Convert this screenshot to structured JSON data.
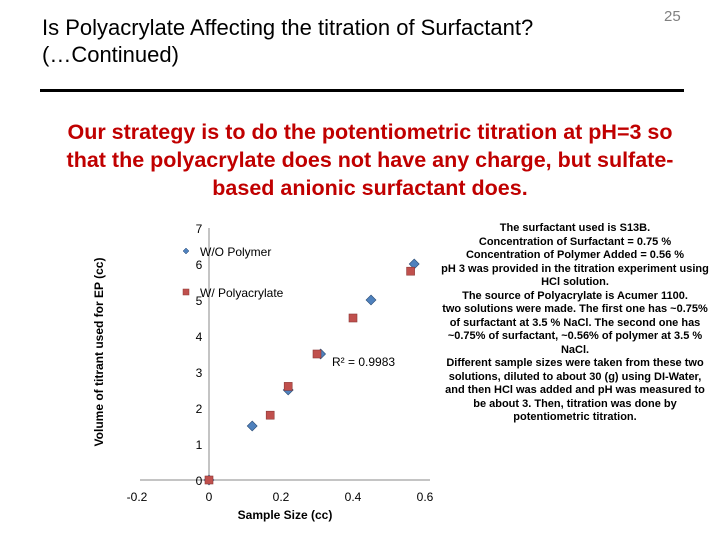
{
  "slide": {
    "title_line1": "Is Polyacrylate Affecting the titration of Surfactant?",
    "title_line2": "(…Continued)",
    "slide_number": "25",
    "strategy_text": "Our strategy is to do the potentiometric titration at pH=3 so that the polyacrylate does not have any charge, but sulfate-based anionic surfactant does.",
    "accent_color": "#c00000",
    "notes": [
      "The surfactant used is S13B.",
      "Concentration of Surfactant = 0.75 %",
      "Concentration of Polymer Added = 0.56 %",
      "pH 3 was provided in the titration experiment using HCl solution.",
      "The source of Polyacrylate is Acumer 1100.",
      "two solutions were made. The first one has ~0.75% of surfactant at 3.5 % NaCl. The second one has ~0.75% of surfactant, ~0.56% of polymer at 3.5 % NaCl.",
      "Different sample sizes were taken from these two solutions, diluted to about 30 (g) using DI-Water, and then HCl was added and pH was measured to be about 3. Then, titration was done by potentiometric titration."
    ]
  },
  "chart_data": {
    "type": "scatter",
    "xlabel": "Sample Size (cc)",
    "ylabel": "Volume of titrant used for EP (cc)",
    "xlim": [
      -0.2,
      0.6
    ],
    "ylim": [
      0,
      7
    ],
    "x_ticks": [
      "-0.2",
      "0",
      "0.2",
      "0.4",
      "0.6"
    ],
    "y_ticks": [
      "0",
      "1",
      "2",
      "3",
      "4",
      "5",
      "6",
      "7"
    ],
    "grid": false,
    "legend_position": "top-left",
    "annotation": "R² = 0.9983",
    "series": [
      {
        "name": "W/O Polymer",
        "marker": "diamond",
        "color": "#4f81bd",
        "x": [
          0.0,
          0.12,
          0.22,
          0.31,
          0.45,
          0.57
        ],
        "y": [
          0.0,
          1.5,
          2.5,
          3.5,
          5.0,
          6.0
        ]
      },
      {
        "name": "W/ Polyacrylate",
        "marker": "square",
        "color": "#c0504d",
        "x": [
          0.0,
          0.17,
          0.22,
          0.3,
          0.4,
          0.56
        ],
        "y": [
          0.0,
          1.8,
          2.6,
          3.5,
          4.5,
          5.8
        ]
      }
    ]
  }
}
